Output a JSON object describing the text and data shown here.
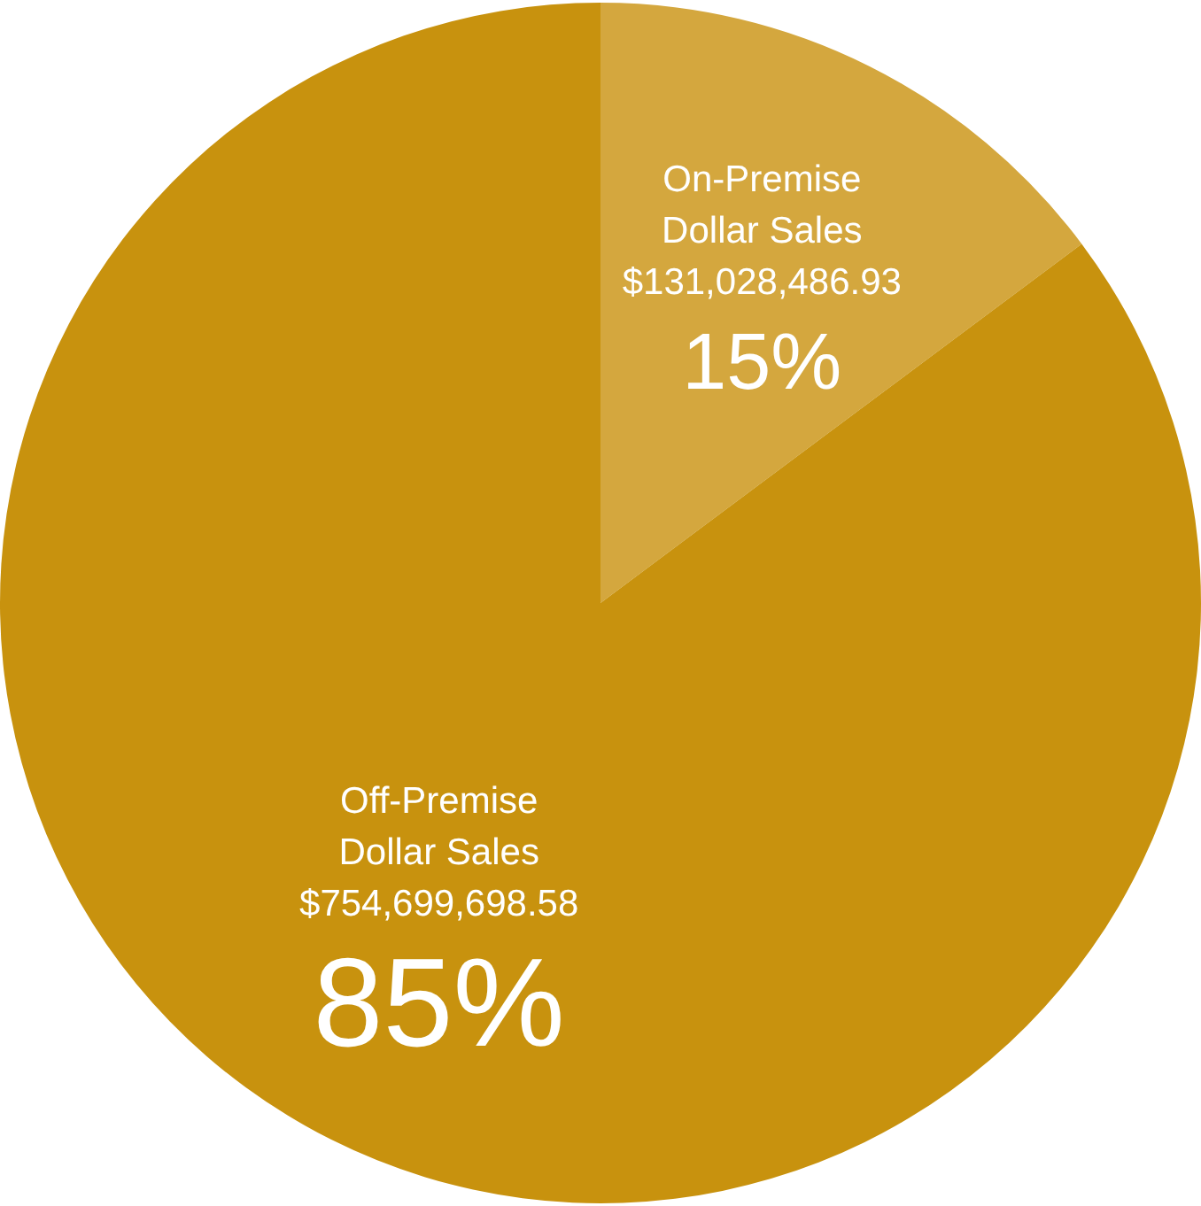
{
  "chart_data": {
    "type": "pie",
    "categories": [
      "On-Premise Dollar Sales",
      "Off-Premise Dollar Sales"
    ],
    "values": [
      131028486.93,
      754699698.58
    ],
    "colors": [
      "#d4a73e",
      "#c8920e"
    ],
    "value_labels": [
      "$131,028,486.93",
      "$754,699,698.58"
    ],
    "annotations": [
      "15%",
      "85%"
    ],
    "legend": false
  }
}
